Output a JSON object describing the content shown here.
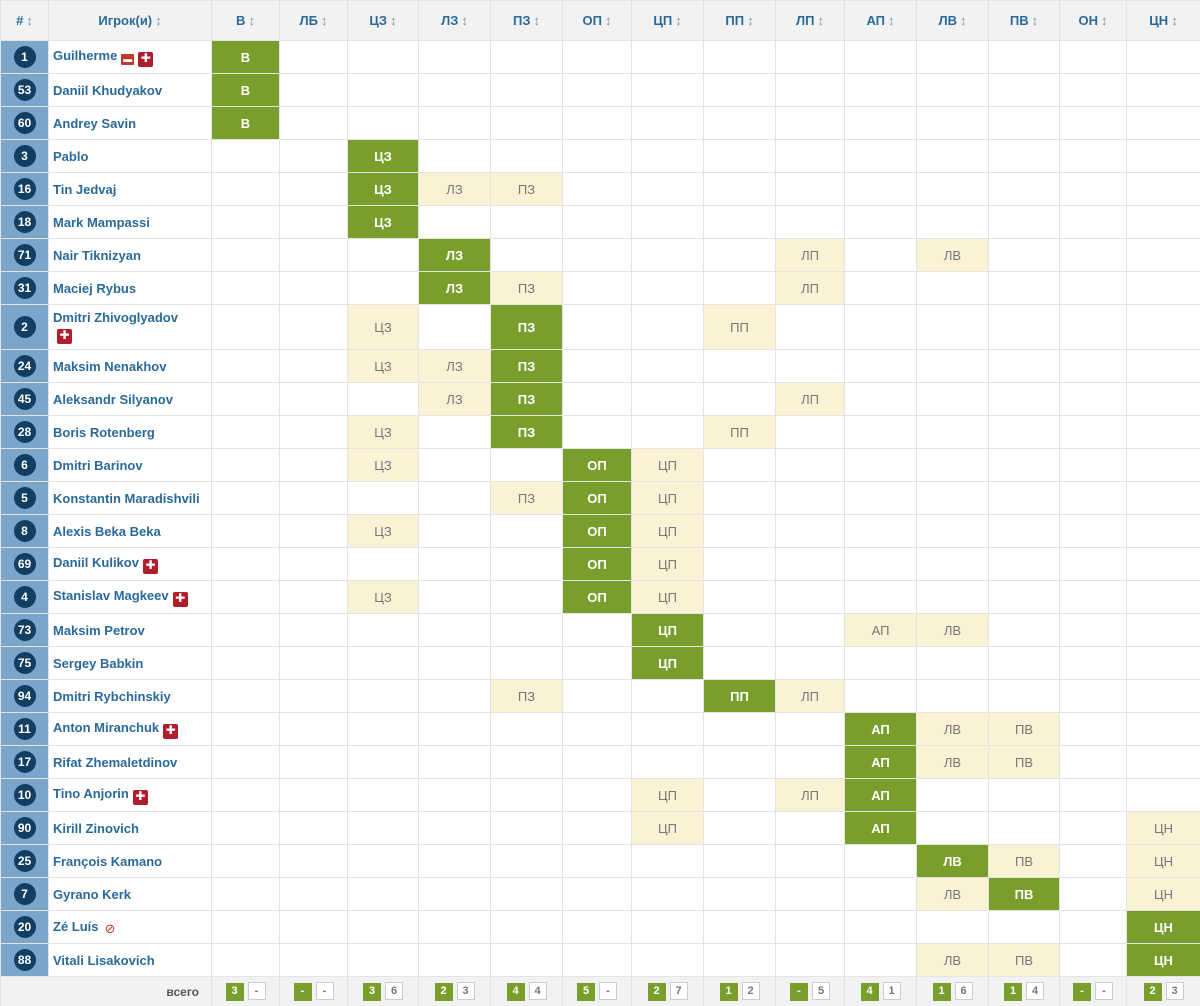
{
  "columns": [
    "#",
    "Игрок(и)",
    "В",
    "ЛБ",
    "ЦЗ",
    "ЛЗ",
    "ПЗ",
    "ОП",
    "ЦП",
    "ПП",
    "ЛП",
    "АП",
    "ЛВ",
    "ПВ",
    "ОН",
    "ЦН"
  ],
  "sort_arrow": "↕",
  "players": [
    {
      "num": "1",
      "name": "Guilherme",
      "icons": [
        "card",
        "injury"
      ],
      "main": "В",
      "alt": []
    },
    {
      "num": "53",
      "name": "Daniil Khudyakov",
      "icons": [],
      "main": "В",
      "alt": []
    },
    {
      "num": "60",
      "name": "Andrey Savin",
      "icons": [],
      "main": "В",
      "alt": []
    },
    {
      "num": "3",
      "name": "Pablo",
      "icons": [],
      "main": "ЦЗ",
      "alt": []
    },
    {
      "num": "16",
      "name": "Tin Jedvaj",
      "icons": [],
      "main": "ЦЗ",
      "alt": [
        "ЛЗ",
        "ПЗ"
      ]
    },
    {
      "num": "18",
      "name": "Mark Mampassi",
      "icons": [],
      "main": "ЦЗ",
      "alt": []
    },
    {
      "num": "71",
      "name": "Nair Tiknizyan",
      "icons": [],
      "main": "ЛЗ",
      "alt": [
        "ЛП",
        "ЛВ"
      ]
    },
    {
      "num": "31",
      "name": "Maciej Rybus",
      "icons": [],
      "main": "ЛЗ",
      "alt": [
        "ПЗ",
        "ЛП"
      ]
    },
    {
      "num": "2",
      "name": "Dmitri Zhivoglyadov",
      "icons": [
        "injury"
      ],
      "main": "ПЗ",
      "alt": [
        "ЦЗ",
        "ПП"
      ],
      "wrap": true
    },
    {
      "num": "24",
      "name": "Maksim Nenakhov",
      "icons": [],
      "main": "ПЗ",
      "alt": [
        "ЦЗ",
        "ЛЗ"
      ]
    },
    {
      "num": "45",
      "name": "Aleksandr Silyanov",
      "icons": [],
      "main": "ПЗ",
      "alt": [
        "ЛЗ",
        "ЛП"
      ]
    },
    {
      "num": "28",
      "name": "Boris Rotenberg",
      "icons": [],
      "main": "ПЗ",
      "alt": [
        "ЦЗ",
        "ПП"
      ]
    },
    {
      "num": "6",
      "name": "Dmitri Barinov",
      "icons": [],
      "main": "ОП",
      "alt": [
        "ЦЗ",
        "ЦП"
      ]
    },
    {
      "num": "5",
      "name": "Konstantin Maradishvili",
      "icons": [],
      "main": "ОП",
      "alt": [
        "ПЗ",
        "ЦП"
      ]
    },
    {
      "num": "8",
      "name": "Alexis Beka Beka",
      "icons": [],
      "main": "ОП",
      "alt": [
        "ЦЗ",
        "ЦП"
      ]
    },
    {
      "num": "69",
      "name": "Daniil Kulikov",
      "icons": [
        "injury"
      ],
      "main": "ОП",
      "alt": [
        "ЦП"
      ]
    },
    {
      "num": "4",
      "name": "Stanislav Magkeev",
      "icons": [
        "injury"
      ],
      "main": "ОП",
      "alt": [
        "ЦЗ",
        "ЦП"
      ]
    },
    {
      "num": "73",
      "name": "Maksim Petrov",
      "icons": [],
      "main": "ЦП",
      "alt": [
        "АП",
        "ЛВ"
      ]
    },
    {
      "num": "75",
      "name": "Sergey Babkin",
      "icons": [],
      "main": "ЦП",
      "alt": []
    },
    {
      "num": "94",
      "name": "Dmitri Rybchinskiy",
      "icons": [],
      "main": "ПП",
      "alt": [
        "ПЗ",
        "ЛП"
      ]
    },
    {
      "num": "11",
      "name": "Anton Miranchuk",
      "icons": [
        "injury"
      ],
      "main": "АП",
      "alt": [
        "ЛВ",
        "ПВ"
      ]
    },
    {
      "num": "17",
      "name": "Rifat Zhemaletdinov",
      "icons": [],
      "main": "АП",
      "alt": [
        "ЛВ",
        "ПВ"
      ]
    },
    {
      "num": "10",
      "name": "Tino Anjorin",
      "icons": [
        "injury"
      ],
      "main": "АП",
      "alt": [
        "ЦП",
        "ЛП"
      ]
    },
    {
      "num": "90",
      "name": "Kirill Zinovich",
      "icons": [],
      "main": "АП",
      "alt": [
        "ЦП",
        "ЦН"
      ]
    },
    {
      "num": "25",
      "name": "François Kamano",
      "icons": [],
      "main": "ЛВ",
      "alt": [
        "ПВ",
        "ЦН"
      ]
    },
    {
      "num": "7",
      "name": "Gyrano Kerk",
      "icons": [],
      "main": "ПВ",
      "alt": [
        "ЛВ",
        "ЦН"
      ]
    },
    {
      "num": "20",
      "name": "Zé Luís",
      "icons": [
        "ban"
      ],
      "main": "ЦН",
      "alt": []
    },
    {
      "num": "88",
      "name": "Vitali Lisakovich",
      "icons": [],
      "main": "ЦН",
      "alt": [
        "ЛВ",
        "ПВ"
      ]
    }
  ],
  "footer": {
    "label": "всего",
    "totals": [
      {
        "pos": "В",
        "main": "3",
        "alt": "-"
      },
      {
        "pos": "ЛБ",
        "main": "-",
        "alt": "-"
      },
      {
        "pos": "ЦЗ",
        "main": "3",
        "alt": "6"
      },
      {
        "pos": "ЛЗ",
        "main": "2",
        "alt": "3"
      },
      {
        "pos": "ПЗ",
        "main": "4",
        "alt": "4"
      },
      {
        "pos": "ОП",
        "main": "5",
        "alt": "-"
      },
      {
        "pos": "ЦП",
        "main": "2",
        "alt": "7"
      },
      {
        "pos": "ПП",
        "main": "1",
        "alt": "2"
      },
      {
        "pos": "ЛП",
        "main": "-",
        "alt": "5"
      },
      {
        "pos": "АП",
        "main": "4",
        "alt": "1"
      },
      {
        "pos": "ЛВ",
        "main": "1",
        "alt": "6"
      },
      {
        "pos": "ПВ",
        "main": "1",
        "alt": "4"
      },
      {
        "pos": "ОН",
        "main": "-",
        "alt": "-"
      },
      {
        "pos": "ЦН",
        "main": "2",
        "alt": "3"
      }
    ]
  },
  "colors": {
    "main_position": "#7a9e2c",
    "alt_position": "#fbf2d6",
    "number_badge": "#123e61",
    "number_cell": "#7aa7c9",
    "player_link": "#2a6a9b",
    "injury_icon": "#b11e2b"
  },
  "icon_names": {
    "injury": "injury-icon",
    "card": "red-card-icon",
    "ban": "suspension-icon"
  }
}
